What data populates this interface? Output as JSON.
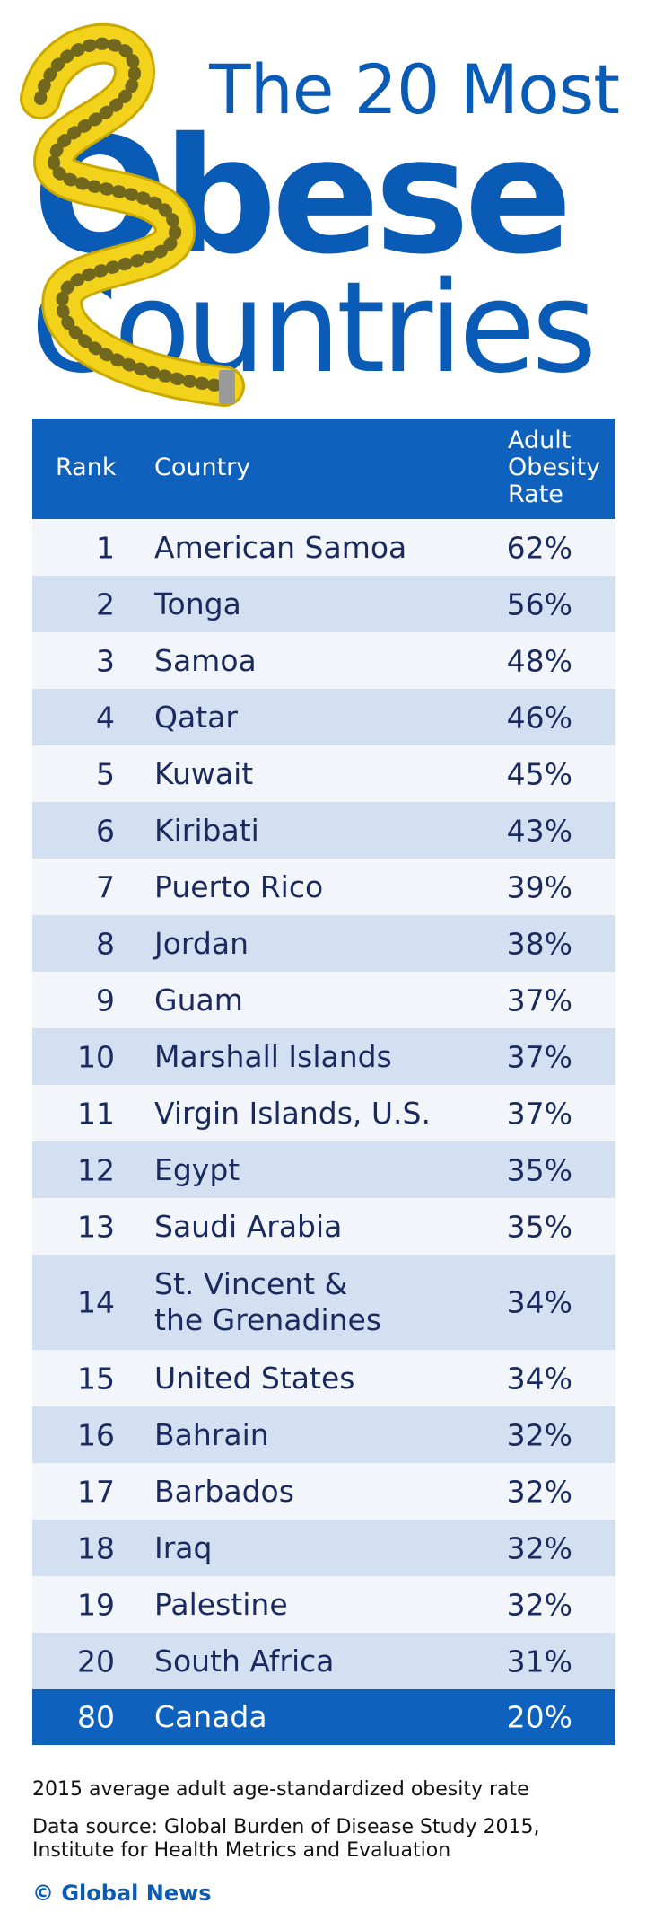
{
  "title": {
    "line1": "The 20 Most",
    "line2": "Obese",
    "line3": "Countries"
  },
  "colors": {
    "brand": "#0a5bb5",
    "header_bg": "#0f61be",
    "row_light": "#f2f6fb",
    "row_dark": "#d2e0f1",
    "tape": "#f2d21a"
  },
  "icons": {
    "tape": "measuring-tape-icon"
  },
  "chart_data": {
    "type": "table",
    "columns": [
      "Rank",
      "Country",
      "Adult Obesity Rate"
    ],
    "rows": [
      {
        "rank": "1",
        "country": "American Samoa",
        "rate": "62%"
      },
      {
        "rank": "2",
        "country": "Tonga",
        "rate": "56%"
      },
      {
        "rank": "3",
        "country": "Samoa",
        "rate": "48%"
      },
      {
        "rank": "4",
        "country": "Qatar",
        "rate": "46%"
      },
      {
        "rank": "5",
        "country": "Kuwait",
        "rate": "45%"
      },
      {
        "rank": "6",
        "country": "Kiribati",
        "rate": "43%"
      },
      {
        "rank": "7",
        "country": "Puerto Rico",
        "rate": "39%"
      },
      {
        "rank": "8",
        "country": "Jordan",
        "rate": "38%"
      },
      {
        "rank": "9",
        "country": "Guam",
        "rate": "37%"
      },
      {
        "rank": "10",
        "country": "Marshall Islands",
        "rate": "37%"
      },
      {
        "rank": "11",
        "country": "Virgin Islands, U.S.",
        "rate": "37%"
      },
      {
        "rank": "12",
        "country": "Egypt",
        "rate": "35%"
      },
      {
        "rank": "13",
        "country": "Saudi Arabia",
        "rate": "35%"
      },
      {
        "rank": "14",
        "country": "St. Vincent &\nthe Grenadines",
        "rate": "34%"
      },
      {
        "rank": "15",
        "country": "United States",
        "rate": "34%"
      },
      {
        "rank": "16",
        "country": "Bahrain",
        "rate": "32%"
      },
      {
        "rank": "17",
        "country": "Barbados",
        "rate": "32%"
      },
      {
        "rank": "18",
        "country": "Iraq",
        "rate": "32%"
      },
      {
        "rank": "19",
        "country": "Palestine",
        "rate": "32%"
      },
      {
        "rank": "20",
        "country": "South Africa",
        "rate": "31%"
      },
      {
        "rank": "80",
        "country": "Canada",
        "rate": "20%",
        "highlight": true
      }
    ]
  },
  "footer": {
    "note": "2015 average adult age-standardized obesity rate",
    "source": "Data source: Global Burden of Disease Study 2015,\nInstitute for Health Metrics and Evaluation",
    "brand": "© Global News"
  }
}
